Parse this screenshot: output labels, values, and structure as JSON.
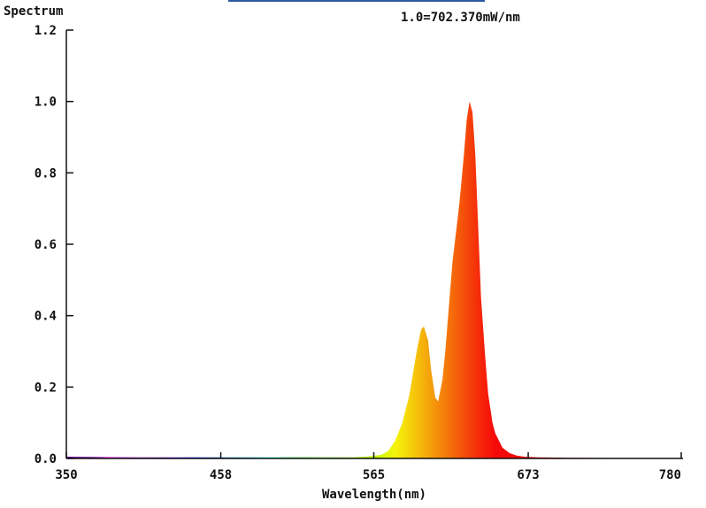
{
  "chart_data": {
    "type": "area",
    "title": "Spectrum",
    "annotation": "1.0=702.370mW/nm",
    "xlabel": "Wavelength(nm)",
    "ylabel": "",
    "xlim": [
      350,
      780
    ],
    "ylim": [
      0,
      1.2
    ],
    "x_ticks": [
      "350",
      "458",
      "565",
      "673",
      "780"
    ],
    "y_ticks": [
      "0.0",
      "0.2",
      "0.4",
      "0.6",
      "0.8",
      "1.0",
      "1.2"
    ],
    "grid": false,
    "fill": "wavelength-colored spectrum",
    "x": [
      350,
      400,
      450,
      500,
      550,
      560,
      570,
      575,
      580,
      585,
      590,
      595,
      598,
      600,
      603,
      605,
      608,
      610,
      613,
      615,
      618,
      620,
      623,
      625,
      628,
      630,
      632,
      634,
      636,
      638,
      640,
      643,
      645,
      648,
      650,
      655,
      660,
      665,
      670,
      680,
      700,
      750,
      780
    ],
    "values": [
      0.005,
      0.003,
      0.003,
      0.003,
      0.003,
      0.005,
      0.01,
      0.02,
      0.05,
      0.1,
      0.18,
      0.3,
      0.36,
      0.37,
      0.33,
      0.25,
      0.17,
      0.16,
      0.22,
      0.3,
      0.45,
      0.55,
      0.65,
      0.72,
      0.85,
      0.95,
      1.0,
      0.97,
      0.85,
      0.65,
      0.45,
      0.28,
      0.18,
      0.1,
      0.07,
      0.03,
      0.015,
      0.008,
      0.005,
      0.003,
      0.002,
      0.001,
      0.001
    ]
  }
}
